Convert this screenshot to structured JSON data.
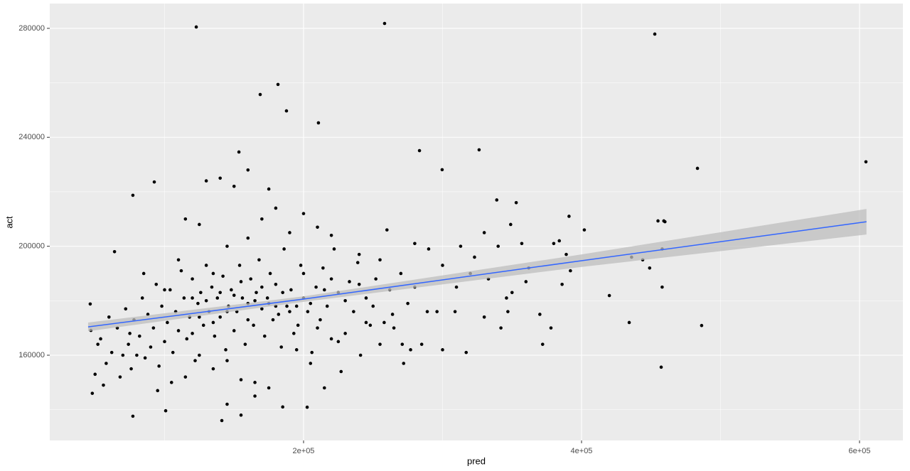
{
  "chart_data": {
    "type": "scatter",
    "x_label": "pred",
    "y_label": "act",
    "xlim": [
      17400,
      631200
    ],
    "ylim": [
      128700,
      289100
    ],
    "xticks": [
      {
        "value": 200000,
        "label": "2e+05"
      },
      {
        "value": 400000,
        "label": "4e+05"
      },
      {
        "value": 600000,
        "label": "6e+05"
      }
    ],
    "yticks": [
      160000,
      200000,
      240000,
      280000
    ],
    "x_minor_grid": [
      100000,
      300000,
      500000
    ],
    "y_minor_grid": [
      140000,
      180000,
      220000,
      260000
    ],
    "grid": true,
    "color": "#000000",
    "x": [
      122800,
      258300,
      452700,
      168800,
      181600,
      187700,
      210700,
      604600,
      483400,
      326300,
      283400,
      153500,
      92600,
      77200,
      46500,
      47000,
      486400,
      457300,
      434300,
      420000,
      77200,
      141200,
      100800,
      202600,
      299700,
      459200,
      455000,
      460000,
      458000,
      458000,
      449000,
      444000,
      436000,
      391000,
      402000,
      384000,
      380000,
      386000,
      389000,
      392000,
      372000,
      378000,
      362000,
      357000,
      346000,
      342000,
      347000,
      353000,
      349000,
      339000,
      333000,
      330000,
      323000,
      317000,
      313000,
      309000,
      300000,
      296000,
      289000,
      285000,
      277000,
      280000,
      275000,
      272000,
      271000,
      264000,
      262000,
      258000,
      255000,
      252000,
      248000,
      245000,
      241000,
      239000,
      236000,
      233000,
      230000,
      227000,
      225000,
      222000,
      220000,
      217000,
      214000,
      212000,
      209000,
      206000,
      203000,
      200000,
      198000,
      196000,
      193000,
      191000,
      188000,
      186000,
      184000,
      182000,
      180000,
      178000,
      176000,
      174000,
      172000,
      170000,
      168000,
      166000,
      164000,
      162000,
      160000,
      158000,
      156000,
      154000,
      152000,
      150000,
      148000,
      146000,
      144000,
      142000,
      140000,
      138000,
      136000,
      134000,
      132000,
      130000,
      128000,
      126000,
      124000,
      122000,
      120000,
      118000,
      116000,
      114000,
      112000,
      110000,
      108000,
      106000,
      104000,
      102000,
      100000,
      98000,
      96000,
      94000,
      92000,
      90000,
      88000,
      86000,
      84000,
      82000,
      80000,
      78000,
      76000,
      74000,
      72000,
      70000,
      68000,
      66000,
      64000,
      62000,
      60000,
      58000,
      56000,
      54000,
      52000,
      50000,
      48000,
      150000,
      145000,
      155000,
      160000,
      165000,
      175000,
      185000,
      195000,
      205000,
      215000,
      130000,
      135000,
      140000,
      125000,
      120000,
      170000,
      180000,
      190000,
      200000,
      210000,
      220000,
      230000,
      240000,
      250000,
      145000,
      155000,
      165000,
      175000,
      135000,
      125000,
      115000,
      105000,
      95000,
      185000,
      195000,
      205000,
      215000,
      225000,
      145000,
      160000,
      170000,
      180000,
      190000,
      200000,
      210000,
      220000,
      140000,
      150000,
      160000,
      175000,
      130000,
      115000,
      125000,
      240000,
      260000,
      270000,
      280000,
      290000,
      300000,
      310000,
      320000,
      330000,
      340000,
      350000,
      360000,
      370000,
      155000,
      165000,
      145000,
      100000,
      85000,
      75000,
      110000,
      120000,
      135000,
      245000,
      255000,
      265000
    ],
    "values": [
      280500,
      281800,
      277900,
      255700,
      259400,
      249700,
      245300,
      231000,
      228600,
      235400,
      235100,
      234600,
      223600,
      218700,
      178800,
      169100,
      170900,
      155600,
      172000,
      181900,
      137600,
      136000,
      139600,
      140900,
      228100,
      209300,
      209300,
      209000,
      199000,
      185000,
      192000,
      195000,
      196000,
      211000,
      206000,
      202000,
      201000,
      186000,
      197000,
      191000,
      164000,
      170000,
      192000,
      201000,
      181000,
      170000,
      176000,
      216000,
      208000,
      217000,
      188000,
      174000,
      196000,
      161000,
      200000,
      176000,
      162000,
      176000,
      176000,
      164000,
      162000,
      185000,
      179000,
      157000,
      164000,
      175000,
      184000,
      172000,
      195000,
      188000,
      171000,
      181000,
      160000,
      194000,
      176000,
      187000,
      168000,
      154000,
      183000,
      199000,
      166000,
      178000,
      192000,
      173000,
      185000,
      161000,
      176000,
      181000,
      193000,
      171000,
      168000,
      184000,
      178000,
      199000,
      163000,
      175000,
      186000,
      173000,
      190000,
      181000,
      167000,
      177000,
      195000,
      183000,
      171000,
      188000,
      179000,
      164000,
      181000,
      193000,
      176000,
      169000,
      184000,
      178000,
      162000,
      189000,
      174000,
      181000,
      167000,
      185000,
      176000,
      193000,
      171000,
      183000,
      179000,
      158000,
      188000,
      174000,
      166000,
      181000,
      191000,
      169000,
      176000,
      161000,
      184000,
      172000,
      165000,
      178000,
      156000,
      186000,
      170000,
      163000,
      175000,
      159000,
      181000,
      167000,
      160000,
      173000,
      155000,
      164000,
      177000,
      160000,
      152000,
      170000,
      198000,
      161000,
      174000,
      157000,
      149000,
      166000,
      164000,
      153000,
      146000,
      182000,
      176000,
      187000,
      173000,
      180000,
      179000,
      183000,
      178000,
      179000,
      184000,
      180000,
      172000,
      183000,
      174000,
      181000,
      185000,
      178000,
      176000,
      190000,
      170000,
      188000,
      180000,
      186000,
      178000,
      158000,
      151000,
      145000,
      148000,
      155000,
      160000,
      152000,
      150000,
      147000,
      141000,
      162000,
      157000,
      148000,
      165000,
      200000,
      203000,
      210000,
      214000,
      205000,
      212000,
      207000,
      204000,
      225000,
      222000,
      228000,
      221000,
      224000,
      210000,
      208000,
      197000,
      206000,
      190000,
      201000,
      199000,
      193000,
      185000,
      190000,
      205000,
      200000,
      183000,
      187000,
      175000,
      138000,
      150000,
      142000,
      184000,
      190000,
      168000,
      195000,
      168000,
      190000,
      172000,
      164000,
      170000
    ],
    "fit": {
      "color": "#3366ff",
      "band_color": "#bdbdbd",
      "x": [
        45000,
        200000,
        400000,
        605000
      ],
      "values": [
        170400,
        180600,
        194700,
        209000
      ],
      "lower": [
        168800,
        179600,
        192400,
        204300
      ],
      "upper": [
        172000,
        181600,
        197000,
        213700
      ]
    }
  }
}
